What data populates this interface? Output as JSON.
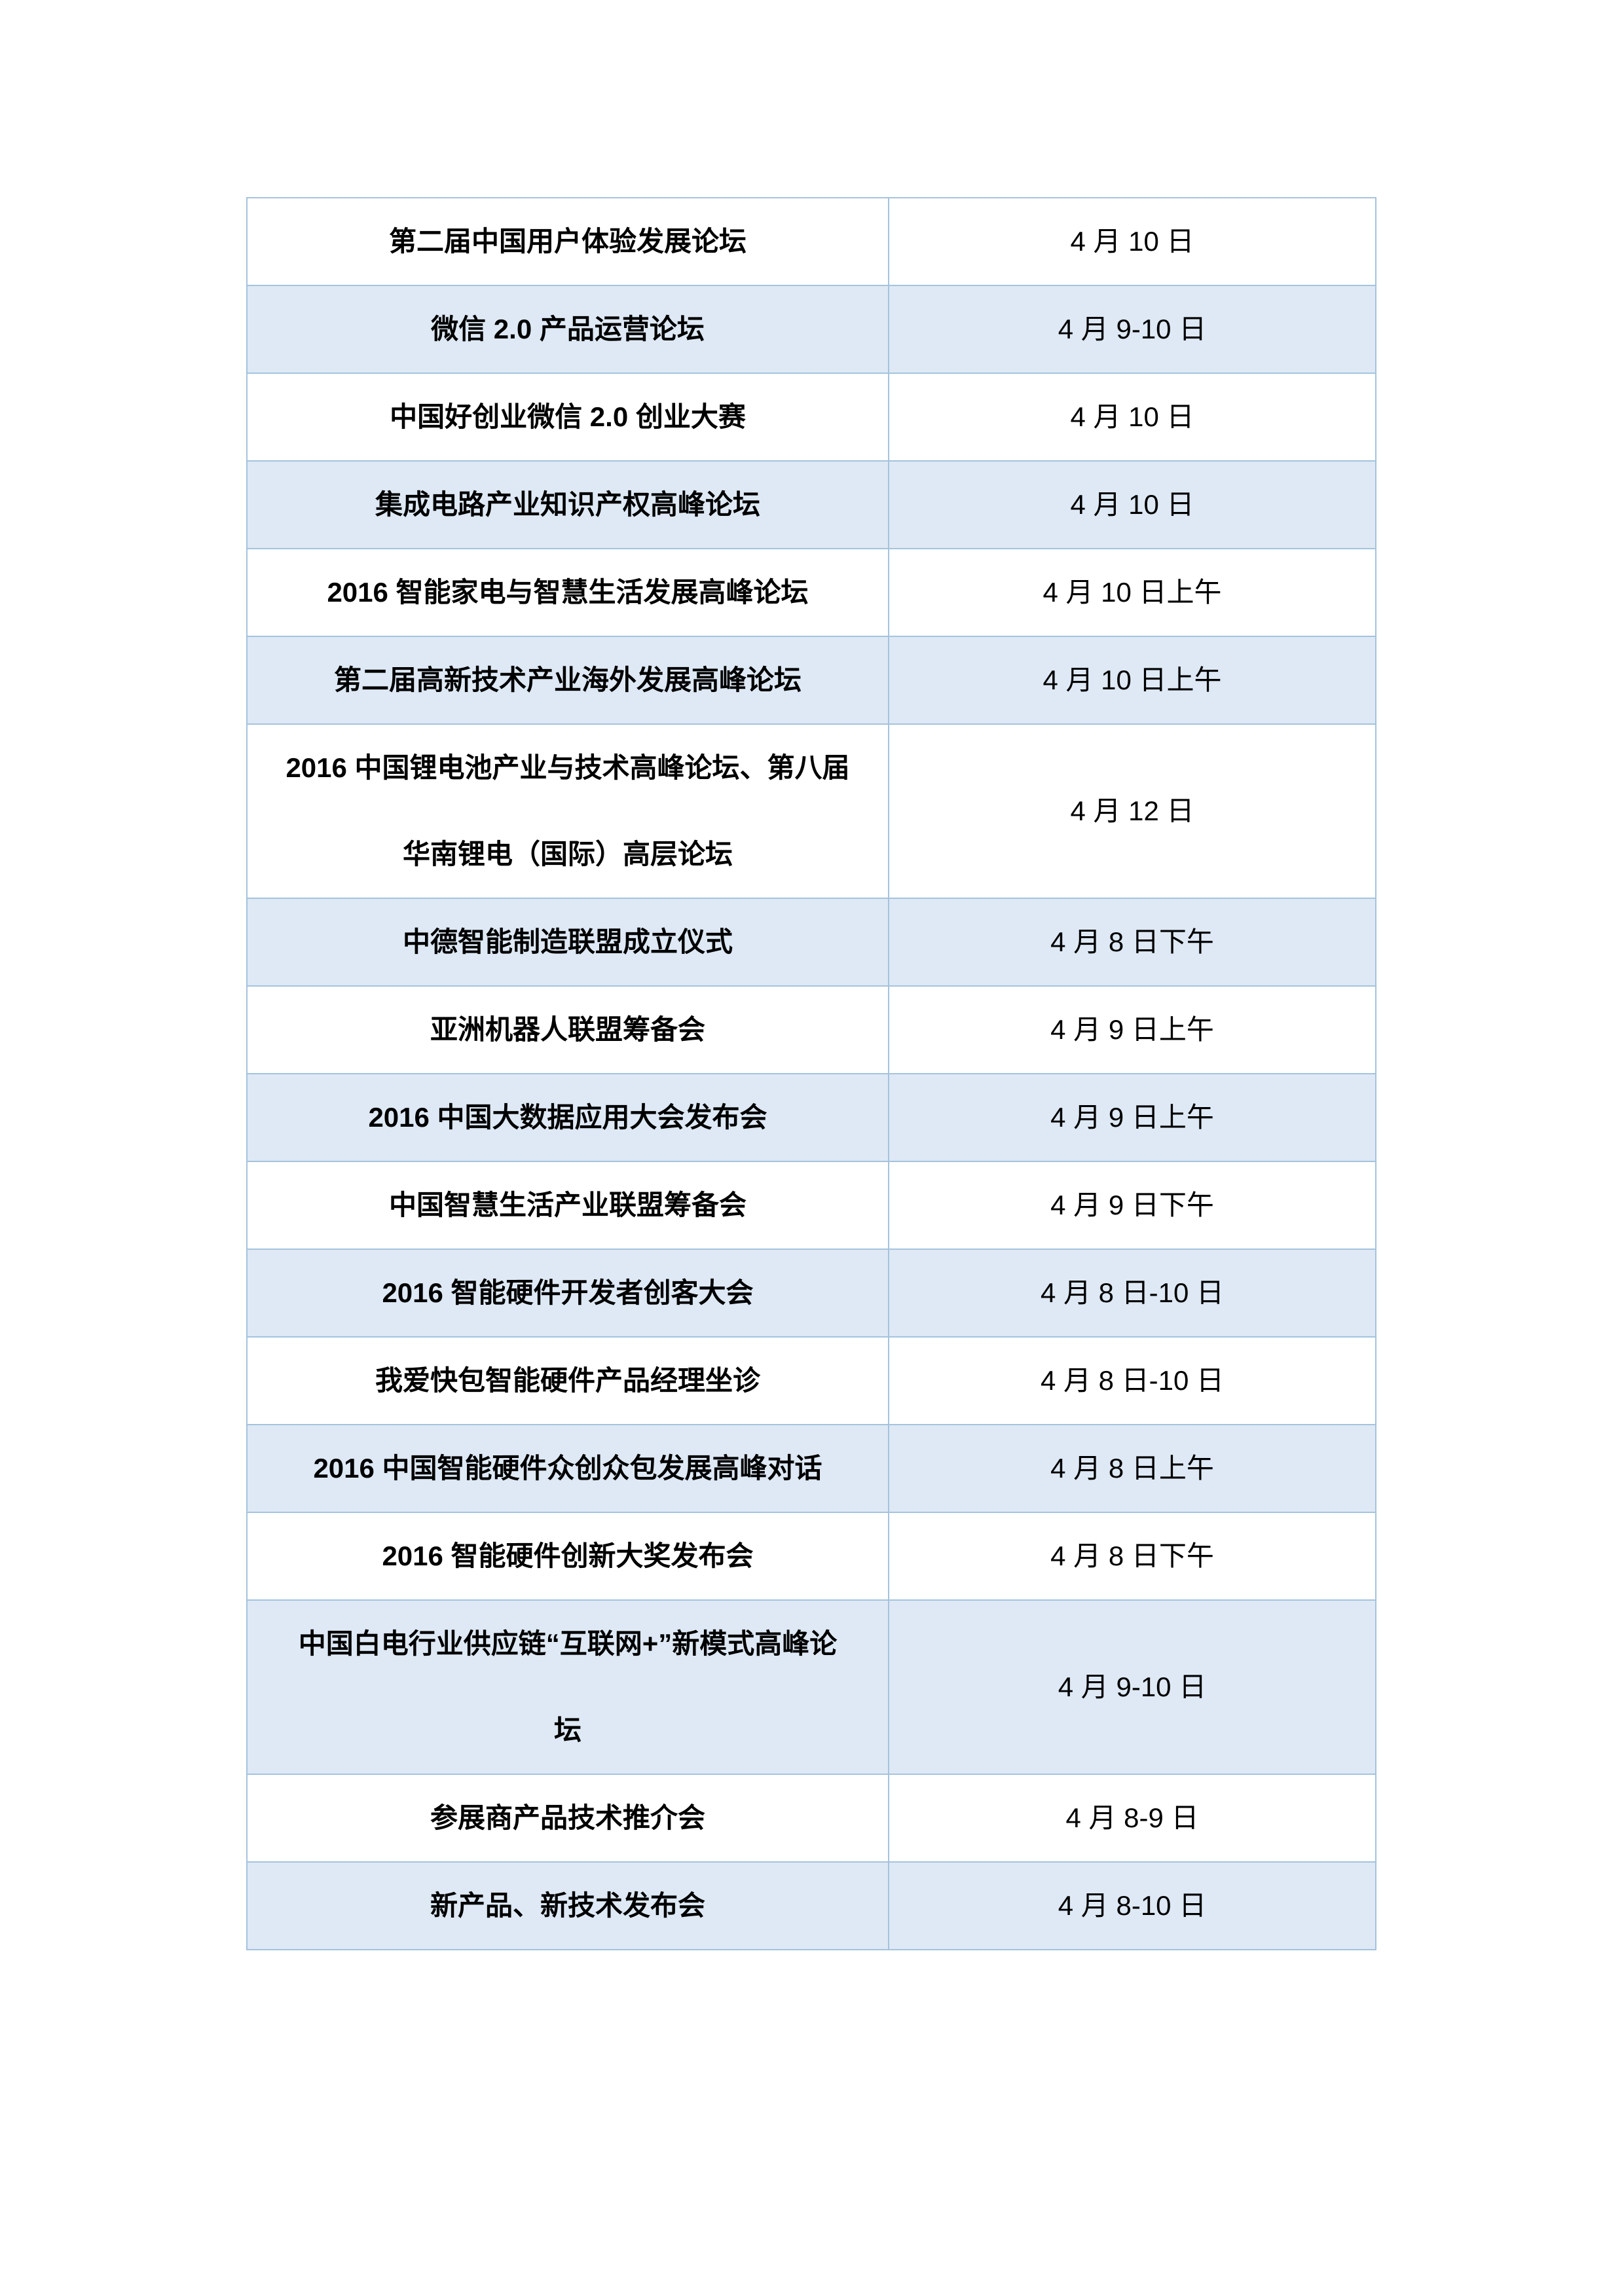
{
  "colors": {
    "page_bg": "#ffffff",
    "border": "#a5c3dd",
    "shaded_row_fill": "#dee9f5",
    "text": "#000000"
  },
  "table": {
    "columns": [
      "event",
      "date"
    ],
    "rows": [
      {
        "event": "第二届中国用户体验发展论坛",
        "date": "4 月 10 日",
        "shaded": false,
        "tall": false
      },
      {
        "event": "微信 2.0 产品运营论坛",
        "date": "4 月 9-10 日",
        "shaded": true,
        "tall": false
      },
      {
        "event": "中国好创业微信 2.0 创业大赛",
        "date": "4 月 10 日",
        "shaded": false,
        "tall": false
      },
      {
        "event": "集成电路产业知识产权高峰论坛",
        "date": "4 月 10 日",
        "shaded": true,
        "tall": false
      },
      {
        "event": "2016 智能家电与智慧生活发展高峰论坛",
        "date": "4 月 10 日上午",
        "shaded": false,
        "tall": false
      },
      {
        "event": "第二届高新技术产业海外发展高峰论坛",
        "date": "4 月 10 日上午",
        "shaded": true,
        "tall": false
      },
      {
        "event": "2016 中国锂电池产业与技术高峰论坛、第八届\n华南锂电（国际）高层论坛",
        "date": "4 月 12 日",
        "shaded": false,
        "tall": true
      },
      {
        "event": "中德智能制造联盟成立仪式",
        "date": "4 月 8 日下午",
        "shaded": true,
        "tall": false
      },
      {
        "event": "亚洲机器人联盟筹备会",
        "date": "4 月 9 日上午",
        "shaded": false,
        "tall": false
      },
      {
        "event": "2016 中国大数据应用大会发布会",
        "date": "4 月 9 日上午",
        "shaded": true,
        "tall": false
      },
      {
        "event": "中国智慧生活产业联盟筹备会",
        "date": "4 月 9 日下午",
        "shaded": false,
        "tall": false
      },
      {
        "event": "2016 智能硬件开发者创客大会",
        "date": "4 月 8 日-10 日",
        "shaded": true,
        "tall": false
      },
      {
        "event": "我爱快包智能硬件产品经理坐诊",
        "date": "4 月 8 日-10 日",
        "shaded": false,
        "tall": false
      },
      {
        "event": "2016 中国智能硬件众创众包发展高峰对话",
        "date": "4 月 8 日上午",
        "shaded": true,
        "tall": false
      },
      {
        "event": "2016 智能硬件创新大奖发布会",
        "date": "4 月 8 日下午",
        "shaded": false,
        "tall": false
      },
      {
        "event": "中国白电行业供应链“互联网+”新模式高峰论\n坛",
        "date": "4 月 9-10 日",
        "shaded": true,
        "tall": true
      },
      {
        "event": "参展商产品技术推介会",
        "date": "4 月 8-9 日",
        "shaded": false,
        "tall": false
      },
      {
        "event": "新产品、新技术发布会",
        "date": "4 月 8-10 日",
        "shaded": true,
        "tall": false
      }
    ]
  }
}
